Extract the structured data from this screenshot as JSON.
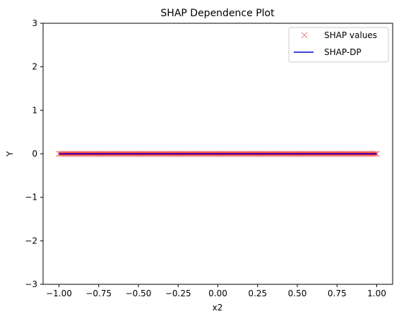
{
  "chart_data": {
    "type": "scatter",
    "title": "SHAP Dependence Plot",
    "xlabel": "x2",
    "ylabel": "Y",
    "xlim": [
      -1.1,
      1.1
    ],
    "ylim": [
      -3,
      3
    ],
    "xticks": [
      -1.0,
      -0.75,
      -0.5,
      -0.25,
      0.0,
      0.25,
      0.5,
      0.75,
      1.0
    ],
    "xtick_labels": [
      "−1.00",
      "−0.75",
      "−0.50",
      "−0.25",
      "0.00",
      "0.25",
      "0.50",
      "0.75",
      "1.00"
    ],
    "yticks": [
      -3,
      -2,
      -1,
      0,
      1,
      2,
      3
    ],
    "ytick_labels": [
      "−3",
      "−2",
      "−1",
      "0",
      "1",
      "2",
      "3"
    ],
    "grid": false,
    "legend_position": "top-right",
    "series": [
      {
        "name": "SHAP values",
        "kind": "scatter",
        "marker": "x",
        "color": "#f08080",
        "x_range": [
          -1.0,
          1.0
        ],
        "y_value": 0
      },
      {
        "name": "SHAP-DP",
        "kind": "line",
        "color": "#0000cd",
        "x": [
          -1.0,
          1.0
        ],
        "y": [
          0,
          0
        ]
      }
    ],
    "overlay_color": "#ff0000"
  }
}
